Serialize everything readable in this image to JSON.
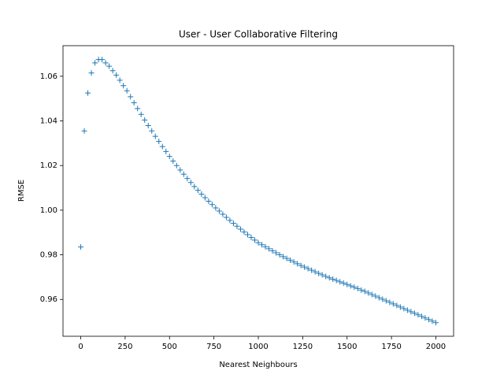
{
  "chart_data": {
    "type": "scatter",
    "marker": "+",
    "color": "#1f77b4",
    "title": "User - User Collaborative Filtering",
    "x_label": "Nearest Neighbours",
    "y_label": "RMSE",
    "x": [
      0,
      20,
      40,
      60,
      80,
      100,
      120,
      140,
      160,
      180,
      200,
      220,
      240,
      260,
      280,
      300,
      320,
      340,
      360,
      380,
      400,
      420,
      440,
      460,
      480,
      500,
      520,
      540,
      560,
      580,
      600,
      620,
      640,
      660,
      680,
      700,
      720,
      740,
      760,
      780,
      800,
      820,
      840,
      860,
      880,
      900,
      920,
      940,
      960,
      980,
      1000,
      1020,
      1040,
      1060,
      1080,
      1100,
      1120,
      1140,
      1160,
      1180,
      1200,
      1220,
      1240,
      1260,
      1280,
      1300,
      1320,
      1340,
      1360,
      1380,
      1400,
      1420,
      1440,
      1460,
      1480,
      1500,
      1520,
      1540,
      1560,
      1580,
      1600,
      1620,
      1640,
      1660,
      1680,
      1700,
      1720,
      1740,
      1760,
      1780,
      1800,
      1820,
      1840,
      1860,
      1880,
      1900,
      1920,
      1940,
      1960,
      1980,
      2000
    ],
    "values": [
      0.9835,
      1.0355,
      1.0525,
      1.0615,
      1.066,
      1.0675,
      1.0675,
      1.066,
      1.0645,
      1.0625,
      1.0605,
      1.0582,
      1.0558,
      1.0535,
      1.0508,
      1.0481,
      1.0455,
      1.0429,
      1.0404,
      1.0379,
      1.0355,
      1.0331,
      1.0308,
      1.0285,
      1.0263,
      1.0241,
      1.022,
      1.02,
      1.018,
      1.0161,
      1.0142,
      1.0124,
      1.0106,
      1.0089,
      1.0072,
      1.0056,
      1.004,
      1.0025,
      1.001,
      0.9996,
      0.9982,
      0.9968,
      0.9954,
      0.9941,
      0.9928,
      0.9915,
      0.9902,
      0.989,
      0.9878,
      0.9866,
      0.9854,
      0.9845,
      0.9836,
      0.9827,
      0.9818,
      0.9809,
      0.98,
      0.9792,
      0.9784,
      0.9776,
      0.9768,
      0.976,
      0.9752,
      0.9745,
      0.9738,
      0.9731,
      0.9724,
      0.9717,
      0.971,
      0.9703,
      0.9697,
      0.9691,
      0.9685,
      0.9679,
      0.9673,
      0.9667,
      0.9661,
      0.9655,
      0.9649,
      0.9642,
      0.9636,
      0.9629,
      0.9622,
      0.9615,
      0.9608,
      0.9601,
      0.9594,
      0.9587,
      0.958,
      0.9573,
      0.9566,
      0.9559,
      0.9552,
      0.9545,
      0.9538,
      0.9531,
      0.9524,
      0.9517,
      0.951,
      0.9503,
      0.9496
    ],
    "xlim": [
      -100,
      2100
    ],
    "xticks": [
      0,
      250,
      500,
      750,
      1000,
      1250,
      1500,
      1750,
      2000
    ],
    "ylim": [
      0.9435,
      1.0737
    ],
    "yticks": [
      0.96,
      0.98,
      {
        "value": 1,
        "label": "1.00"
      },
      1.02,
      1.04,
      1.06
    ]
  }
}
